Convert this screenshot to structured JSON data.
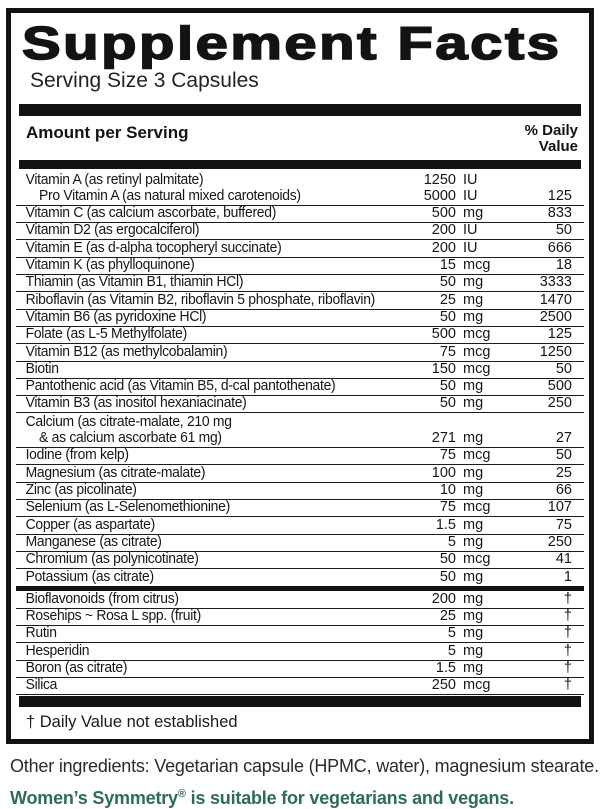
{
  "label": {
    "title": "Supplement Facts",
    "serving_size": "Serving Size 3 Capsules",
    "columns": {
      "amount_header": "Amount per Serving",
      "daily_header_line1": "% Daily",
      "daily_header_line2": "Value"
    },
    "rows": [
      {
        "name": "Vitamin A (as retinyl palmitate)",
        "amount": "1250",
        "unit": "IU",
        "pct": "",
        "noline": true
      },
      {
        "name": "Pro Vitamin A (as natural mixed carotenoids)",
        "amount": "5000",
        "unit": "IU",
        "pct": "125",
        "indent": true
      },
      {
        "name": "Vitamin C (as calcium ascorbate, buffered)",
        "amount": "500",
        "unit": "mg",
        "pct": "833"
      },
      {
        "name": "Vitamin D2 (as ergocalciferol)",
        "amount": "200",
        "unit": "IU",
        "pct": "50"
      },
      {
        "name": "Vitamin E (as d-alpha tocopheryl succinate)",
        "amount": "200",
        "unit": "IU",
        "pct": "666"
      },
      {
        "name": "Vitamin K (as phylloquinone)",
        "amount": "15",
        "unit": "mcg",
        "pct": "18"
      },
      {
        "name": "Thiamin (as Vitamin B1, thiamin HCl)",
        "amount": "50",
        "unit": "mg",
        "pct": "3333"
      },
      {
        "name": "Riboflavin (as Vitamin B2, riboflavin 5 phosphate, riboflavin)",
        "amount": "25",
        "unit": "mg",
        "pct": "1470"
      },
      {
        "name": "Vitamin B6 (as pyridoxine HCl)",
        "amount": "50",
        "unit": "mg",
        "pct": "2500"
      },
      {
        "name": "Folate (as L-5 Methylfolate)",
        "amount": "500",
        "unit": "mcg",
        "pct": "125"
      },
      {
        "name": "Vitamin B12 (as methylcobalamin)",
        "amount": "75",
        "unit": "mcg",
        "pct": "1250"
      },
      {
        "name": "Biotin",
        "amount": "150",
        "unit": "mcg",
        "pct": "50"
      },
      {
        "name": "Pantothenic acid (as Vitamin B5, d-cal pantothenate)",
        "amount": "50",
        "unit": "mg",
        "pct": "500"
      },
      {
        "name": "Vitamin B3 (as inositol hexaniacinate)",
        "amount": "50",
        "unit": "mg",
        "pct": "250"
      },
      {
        "name": "Calcium (as citrate-malate, 210 mg",
        "amount": "",
        "unit": "",
        "pct": "",
        "noline": true
      },
      {
        "name": "& as calcium ascorbate 61 mg)",
        "amount": "271",
        "unit": "mg",
        "pct": "27",
        "indent": true
      },
      {
        "name": "Iodine (from kelp)",
        "amount": "75",
        "unit": "mcg",
        "pct": "50"
      },
      {
        "name": "Magnesium (as citrate-malate)",
        "amount": "100",
        "unit": "mg",
        "pct": "25"
      },
      {
        "name": "Zinc (as picolinate)",
        "amount": "10",
        "unit": "mg",
        "pct": "66"
      },
      {
        "name": "Selenium (as L-Selenomethionine)",
        "amount": "75",
        "unit": "mcg",
        "pct": "107"
      },
      {
        "name": "Copper (as aspartate)",
        "amount": "1.5",
        "unit": "mg",
        "pct": "75"
      },
      {
        "name": "Manganese (as citrate)",
        "amount": "5",
        "unit": "mg",
        "pct": "250"
      },
      {
        "name": "Chromium (as polynicotinate)",
        "amount": "50",
        "unit": "mcg",
        "pct": "41"
      },
      {
        "name": "Potassium (as citrate)",
        "amount": "50",
        "unit": "mg",
        "pct": "1",
        "noline": true,
        "thick_divider_after": true
      },
      {
        "name": "Bioflavonoids (from citrus)",
        "amount": "200",
        "unit": "mg",
        "pct": "†"
      },
      {
        "name": "Rosehips ~ Rosa L spp. (fruit)",
        "amount": "25",
        "unit": "mg",
        "pct": "†"
      },
      {
        "name": "Rutin",
        "amount": "5",
        "unit": "mg",
        "pct": "†"
      },
      {
        "name": "Hesperidin",
        "amount": "5",
        "unit": "mg",
        "pct": "†"
      },
      {
        "name": "Boron (as citrate)",
        "amount": "1.5",
        "unit": "mg",
        "pct": "†"
      },
      {
        "name": "Silica",
        "amount": "250",
        "unit": "mcg",
        "pct": "†"
      }
    ],
    "footnote": "† Daily Value not established"
  },
  "footer": {
    "other_ingredients": "Other ingredients: Vegetarian capsule (HPMC, water), magnesium stearate.",
    "vegan_brand": "Women’s Symmetry",
    "vegan_reg": "®",
    "vegan_rest": " is suitable for vegetarians and vegans."
  },
  "colors": {
    "accent_teal": "#2e6b5e",
    "ink": "#111111"
  }
}
